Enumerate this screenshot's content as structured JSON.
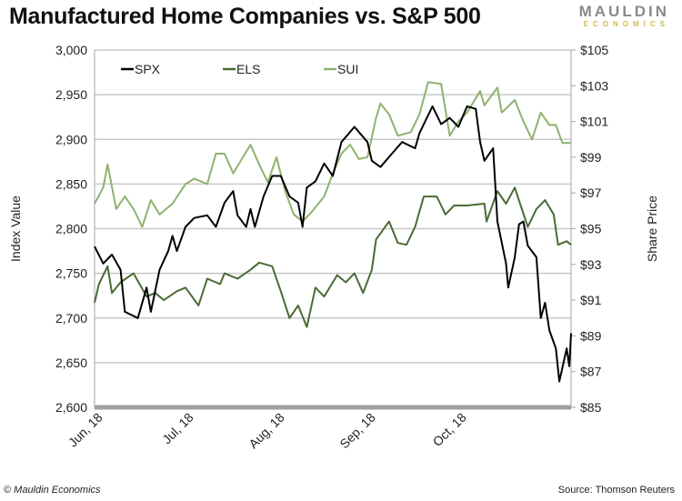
{
  "title": "Manufactured Home Companies vs. S&P 500",
  "logo": {
    "line1": "MAULDIN",
    "line2": "ECONOMICS"
  },
  "footer": {
    "left": "© Mauldin Economics",
    "right": "Source: Thomson Reuters"
  },
  "colors": {
    "SPX": "#000000",
    "ELS": "#4a6b34",
    "SUI": "#8fb26e",
    "grid": "#c8c8c8",
    "axis": "#a6a6a6"
  },
  "chart_data": {
    "type": "line",
    "title": "Manufactured Home Companies vs. S&P 500",
    "ylabel": "Index Value",
    "y2label": "Share Price",
    "ylim": [
      2600,
      3000
    ],
    "y2lim": [
      85,
      105
    ],
    "xlim": [
      0,
      110
    ],
    "xunit": "trading days from start of June 2018",
    "yticks": [
      "2,600",
      "2,650",
      "2,700",
      "2,750",
      "2,800",
      "2,850",
      "2,900",
      "2,950",
      "3,000"
    ],
    "y2ticks": [
      "$85",
      "$87",
      "$89",
      "$91",
      "$93",
      "$95",
      "$97",
      "$99",
      "$101",
      "$103",
      "$105"
    ],
    "xticks": [
      {
        "label": "Jun, 18",
        "x": 2
      },
      {
        "label": "Jul, 18",
        "x": 23
      },
      {
        "label": "Aug, 18",
        "x": 44
      },
      {
        "label": "Sep, 18",
        "x": 65
      },
      {
        "label": "Oct, 18",
        "x": 86
      }
    ],
    "legend": {
      "placement": "top-left",
      "entries": [
        "SPX",
        "ELS",
        "SUI"
      ]
    },
    "series": [
      {
        "name": "SPX",
        "axis": "left",
        "points": [
          [
            0,
            2780
          ],
          [
            2,
            2761
          ],
          [
            4,
            2771
          ],
          [
            6,
            2754
          ],
          [
            7,
            2707
          ],
          [
            10,
            2700
          ],
          [
            12,
            2734
          ],
          [
            13,
            2707
          ],
          [
            15,
            2754
          ],
          [
            17,
            2775
          ],
          [
            18,
            2792
          ],
          [
            19,
            2775
          ],
          [
            21,
            2802
          ],
          [
            23,
            2812
          ],
          [
            26,
            2815
          ],
          [
            28,
            2802
          ],
          [
            30,
            2829
          ],
          [
            32,
            2842
          ],
          [
            33,
            2815
          ],
          [
            35,
            2802
          ],
          [
            36,
            2822
          ],
          [
            37,
            2802
          ],
          [
            39,
            2836
          ],
          [
            41,
            2859
          ],
          [
            43,
            2859
          ],
          [
            45,
            2836
          ],
          [
            47,
            2829
          ],
          [
            48,
            2802
          ],
          [
            49,
            2846
          ],
          [
            51,
            2853
          ],
          [
            53,
            2873
          ],
          [
            55,
            2859
          ],
          [
            57,
            2897
          ],
          [
            60,
            2914
          ],
          [
            63,
            2897
          ],
          [
            64,
            2876
          ],
          [
            66,
            2869
          ],
          [
            69,
            2886
          ],
          [
            71,
            2897
          ],
          [
            74,
            2890
          ],
          [
            75,
            2907
          ],
          [
            78,
            2937
          ],
          [
            80,
            2917
          ],
          [
            82,
            2924
          ],
          [
            84,
            2914
          ],
          [
            86,
            2937
          ],
          [
            88,
            2934
          ],
          [
            89,
            2897
          ],
          [
            90,
            2876
          ],
          [
            92,
            2890
          ],
          [
            93,
            2808
          ],
          [
            95,
            2761
          ],
          [
            95.5,
            2734
          ],
          [
            97,
            2768
          ],
          [
            98,
            2805
          ],
          [
            99,
            2808
          ],
          [
            100,
            2781
          ],
          [
            102,
            2768
          ],
          [
            103,
            2700
          ],
          [
            104,
            2717
          ],
          [
            105,
            2686
          ],
          [
            106.5,
            2666
          ],
          [
            107.3,
            2629
          ],
          [
            109,
            2666
          ],
          [
            109.6,
            2646
          ],
          [
            110,
            2683
          ]
        ]
      },
      {
        "name": "ELS",
        "axis": "right",
        "points": [
          [
            0,
            90.85
          ],
          [
            1,
            91.9
          ],
          [
            3,
            92.9
          ],
          [
            4,
            91.4
          ],
          [
            6,
            92.0
          ],
          [
            9,
            92.5
          ],
          [
            12,
            91.2
          ],
          [
            14,
            91.4
          ],
          [
            16,
            91.0
          ],
          [
            19,
            91.5
          ],
          [
            21,
            91.7
          ],
          [
            24,
            90.7
          ],
          [
            26,
            92.2
          ],
          [
            29,
            91.9
          ],
          [
            30,
            92.5
          ],
          [
            33,
            92.2
          ],
          [
            36,
            92.7
          ],
          [
            38,
            93.1
          ],
          [
            41,
            92.9
          ],
          [
            43,
            91.5
          ],
          [
            45,
            90.0
          ],
          [
            47,
            90.7
          ],
          [
            49,
            89.5
          ],
          [
            51,
            91.7
          ],
          [
            53,
            91.2
          ],
          [
            56,
            92.4
          ],
          [
            58,
            92.0
          ],
          [
            60,
            92.5
          ],
          [
            62,
            91.4
          ],
          [
            64,
            92.7
          ],
          [
            65,
            94.4
          ],
          [
            68,
            95.4
          ],
          [
            70,
            94.2
          ],
          [
            72,
            94.1
          ],
          [
            74,
            95.1
          ],
          [
            76,
            96.8
          ],
          [
            79,
            96.8
          ],
          [
            81,
            95.8
          ],
          [
            83,
            96.3
          ],
          [
            86,
            96.3
          ],
          [
            90,
            96.4
          ],
          [
            90.5,
            95.4
          ],
          [
            93,
            97.1
          ],
          [
            95,
            96.4
          ],
          [
            97,
            97.3
          ],
          [
            100,
            95.1
          ],
          [
            102,
            96.1
          ],
          [
            104,
            96.6
          ],
          [
            106,
            95.8
          ],
          [
            107,
            94.1
          ],
          [
            109,
            94.3
          ],
          [
            110,
            94.1
          ]
        ]
      },
      {
        "name": "SUI",
        "axis": "right",
        "points": [
          [
            0,
            96.4
          ],
          [
            2,
            97.3
          ],
          [
            3,
            98.6
          ],
          [
            5,
            96.1
          ],
          [
            7,
            96.8
          ],
          [
            9,
            96.1
          ],
          [
            11,
            95.1
          ],
          [
            13,
            96.6
          ],
          [
            15,
            95.8
          ],
          [
            18,
            96.4
          ],
          [
            21,
            97.5
          ],
          [
            23,
            97.8
          ],
          [
            26,
            97.5
          ],
          [
            28,
            99.2
          ],
          [
            30,
            99.2
          ],
          [
            32,
            98.1
          ],
          [
            36,
            99.7
          ],
          [
            38,
            98.6
          ],
          [
            40,
            97.6
          ],
          [
            42,
            99.0
          ],
          [
            44,
            97.1
          ],
          [
            46,
            95.8
          ],
          [
            48,
            95.4
          ],
          [
            50,
            95.9
          ],
          [
            53,
            96.8
          ],
          [
            55,
            98.1
          ],
          [
            57,
            99.2
          ],
          [
            59,
            99.7
          ],
          [
            61,
            98.9
          ],
          [
            63,
            99.0
          ],
          [
            65,
            101.2
          ],
          [
            66,
            102.0
          ],
          [
            68,
            101.4
          ],
          [
            70,
            100.2
          ],
          [
            73,
            100.4
          ],
          [
            75,
            101.4
          ],
          [
            77,
            103.2
          ],
          [
            80,
            103.1
          ],
          [
            82,
            100.2
          ],
          [
            84,
            101.0
          ],
          [
            86,
            101.5
          ],
          [
            89,
            102.7
          ],
          [
            90,
            101.9
          ],
          [
            93,
            102.9
          ],
          [
            94,
            101.5
          ],
          [
            97,
            102.2
          ],
          [
            99,
            101.0
          ],
          [
            101,
            100.0
          ],
          [
            103,
            101.5
          ],
          [
            105,
            100.8
          ],
          [
            106.5,
            100.8
          ],
          [
            108,
            99.8
          ],
          [
            110,
            99.8
          ]
        ]
      }
    ]
  }
}
